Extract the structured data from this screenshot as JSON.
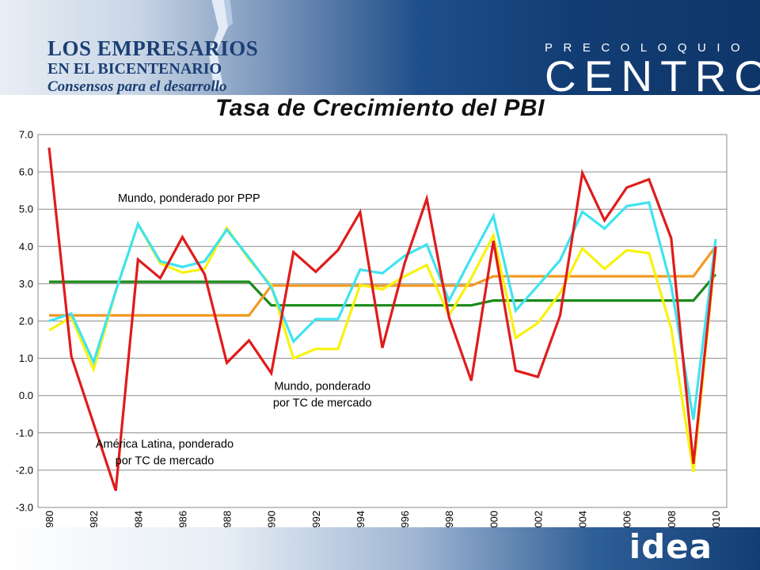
{
  "header": {
    "brand_line1": "LOS EMPRESARIOS",
    "brand_line2": "EN EL BICENTENARIO",
    "brand_line3": "Consensos para el desarrollo",
    "event_line1": "PRECOLOQUIO",
    "event_line2": "CENTRO"
  },
  "footer": {
    "logo": "idea"
  },
  "chart_data": {
    "type": "line",
    "title": "Tasa de Crecimiento del PBI",
    "xlabel": "",
    "ylabel": "",
    "x": [
      1980,
      1981,
      1982,
      1983,
      1984,
      1985,
      1986,
      1987,
      1988,
      1989,
      1990,
      1991,
      1992,
      1993,
      1994,
      1995,
      1996,
      1997,
      1998,
      1999,
      2000,
      2001,
      2002,
      2003,
      2004,
      2005,
      2006,
      2007,
      2008,
      2009,
      2010
    ],
    "x_tick_labels": [
      "1980",
      "1982",
      "1984",
      "1986",
      "1988",
      "1990",
      "1992",
      "1994",
      "1996",
      "1998",
      "2000",
      "2002",
      "2004",
      "2006",
      "2008",
      "2010"
    ],
    "ylim": [
      -3.0,
      7.0
    ],
    "y_tick_labels": [
      "-3.0",
      "-2.0",
      "-1.0",
      "0.0",
      "1.0",
      "2.0",
      "3.0",
      "4.0",
      "5.0",
      "6.0",
      "7.0"
    ],
    "grid": true,
    "annotations": [
      {
        "text_lines": [
          "Mundo, ponderado por PPP"
        ],
        "anchor_x": 1986.3,
        "anchor_y": 5.2
      },
      {
        "text_lines": [
          "Mundo, ponderado",
          "por TC de mercado"
        ],
        "anchor_x": 1992.3,
        "anchor_y": 0.15
      },
      {
        "text_lines": [
          "América Latina, ponderado",
          "por TC de mercado"
        ],
        "anchor_x": 1985.2,
        "anchor_y": -1.4
      }
    ],
    "series": [
      {
        "id": "latam",
        "color": "#e01b1b",
        "values": [
          6.65,
          1.05,
          -0.75,
          -2.55,
          3.65,
          3.15,
          4.25,
          3.25,
          0.88,
          1.48,
          0.6,
          3.85,
          3.32,
          3.9,
          4.92,
          1.28,
          3.55,
          5.28,
          2.1,
          0.4,
          4.15,
          0.67,
          0.5,
          2.15,
          5.97,
          4.7,
          5.58,
          5.8,
          4.22,
          -1.83,
          4.0
        ]
      },
      {
        "id": "mundo_ppp",
        "color": "#3fe3f0",
        "values": [
          2.0,
          2.2,
          0.9,
          2.8,
          4.6,
          3.6,
          3.45,
          3.6,
          4.45,
          3.7,
          2.9,
          1.45,
          2.05,
          2.05,
          3.38,
          3.28,
          3.75,
          4.05,
          2.55,
          3.7,
          4.82,
          2.28,
          2.95,
          3.63,
          4.93,
          4.48,
          5.08,
          5.18,
          2.95,
          -0.65,
          4.2
        ]
      },
      {
        "id": "mundo_tc",
        "color": "#f8f20e",
        "values": [
          1.75,
          2.1,
          0.7,
          2.8,
          4.6,
          3.55,
          3.3,
          3.4,
          4.5,
          3.65,
          2.95,
          1.0,
          1.25,
          1.25,
          2.97,
          2.85,
          3.2,
          3.5,
          2.15,
          3.15,
          4.3,
          1.55,
          1.95,
          2.75,
          3.95,
          3.4,
          3.9,
          3.82,
          1.8,
          -2.05,
          3.9
        ]
      },
      {
        "id": "trend_green",
        "color": "#1a8a1a",
        "values": [
          3.05,
          3.05,
          3.05,
          3.05,
          3.05,
          3.05,
          3.05,
          3.05,
          3.05,
          3.05,
          2.42,
          2.42,
          2.42,
          2.42,
          2.42,
          2.42,
          2.42,
          2.42,
          2.42,
          2.42,
          2.55,
          2.55,
          2.55,
          2.55,
          2.55,
          2.55,
          2.55,
          2.55,
          2.55,
          2.55,
          3.25
        ]
      },
      {
        "id": "trend_orange",
        "color": "#f29a22",
        "values": [
          2.15,
          2.15,
          2.15,
          2.15,
          2.15,
          2.15,
          2.15,
          2.15,
          2.15,
          2.15,
          2.95,
          2.95,
          2.95,
          2.95,
          2.95,
          2.95,
          2.95,
          2.95,
          2.95,
          2.95,
          3.2,
          3.2,
          3.2,
          3.2,
          3.2,
          3.2,
          3.2,
          3.2,
          3.2,
          3.2,
          4.0
        ]
      }
    ]
  }
}
